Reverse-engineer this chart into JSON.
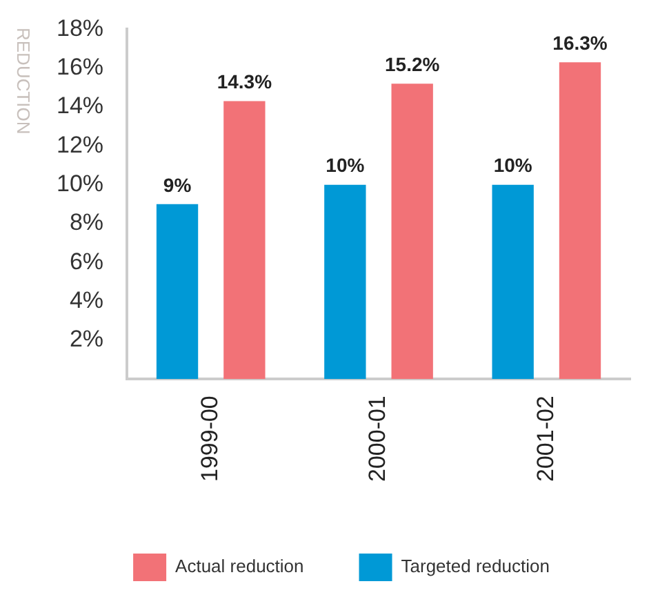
{
  "chart_data": {
    "type": "bar",
    "ylabel": "REDUCTION",
    "categories": [
      "1999-00",
      "2000-01",
      "2001-02"
    ],
    "series": [
      {
        "name": "Targeted reduction",
        "color": "#0099d6",
        "values": [
          9,
          10,
          10
        ],
        "value_labels": [
          "9%",
          "10%",
          "10%"
        ]
      },
      {
        "name": "Actual reduction",
        "color": "#f27277",
        "values": [
          14.3,
          15.2,
          16.3
        ],
        "value_labels": [
          "14.3%",
          "15.2%",
          "16.3%"
        ]
      }
    ],
    "ylim": [
      0,
      18
    ],
    "yticks": [
      {
        "value": 2,
        "label": "2%"
      },
      {
        "value": 4,
        "label": "4%"
      },
      {
        "value": 6,
        "label": "6%"
      },
      {
        "value": 8,
        "label": "8%"
      },
      {
        "value": 10,
        "label": "10%"
      },
      {
        "value": 12,
        "label": "12%"
      },
      {
        "value": 14,
        "label": "14%"
      },
      {
        "value": 16,
        "label": "16%"
      },
      {
        "value": 18,
        "label": "18%"
      }
    ],
    "grid": false,
    "legend": "bottom"
  }
}
